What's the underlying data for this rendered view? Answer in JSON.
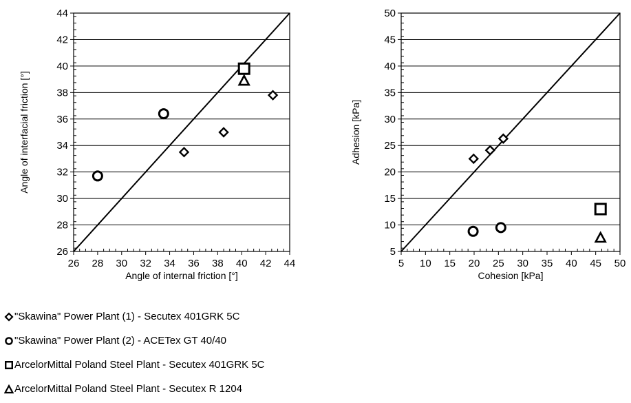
{
  "chart_data": [
    {
      "type": "scatter",
      "xlabel": "Angle of internal friction [°]",
      "ylabel": "Angle of interfacial friction [°]",
      "xlim": [
        26,
        44
      ],
      "ylim": [
        26,
        44
      ],
      "xticks": [
        "26",
        "28",
        "30",
        "32",
        "34",
        "36",
        "38",
        "40",
        "42",
        "44"
      ],
      "yticks": [
        "26",
        "28",
        "30",
        "32",
        "34",
        "36",
        "38",
        "40",
        "42",
        "44"
      ],
      "grid": "horizontal",
      "reference_line": "y = x",
      "series": [
        {
          "name": "\"Skawina\" Power Plant (1) - Secutex 401GRK 5C",
          "marker": "diamond",
          "points": [
            [
              35.2,
              33.5
            ],
            [
              38.5,
              35.0
            ],
            [
              42.6,
              37.8
            ]
          ]
        },
        {
          "name": "\"Skawina\" Power Plant (2) - ACETex GT 40/40",
          "marker": "circle",
          "points": [
            [
              28.0,
              31.7
            ],
            [
              33.5,
              36.4
            ]
          ]
        },
        {
          "name": "ArcelorMittal Poland Steel Plant - Secutex 401GRK 5C",
          "marker": "square",
          "points": [
            [
              40.2,
              39.8
            ]
          ]
        },
        {
          "name": "ArcelorMittal Poland Steel Plant - Secutex R 1204",
          "marker": "triangle",
          "points": [
            [
              40.2,
              38.9
            ]
          ]
        }
      ]
    },
    {
      "type": "scatter",
      "xlabel": "Cohesion [kPa]",
      "ylabel": "Adhesion [kPa]",
      "xlim": [
        5,
        50
      ],
      "ylim": [
        5,
        50
      ],
      "xticks": [
        "5",
        "10",
        "15",
        "20",
        "25",
        "30",
        "35",
        "40",
        "45",
        "50"
      ],
      "yticks": [
        "5",
        "10",
        "15",
        "20",
        "25",
        "30",
        "35",
        "40",
        "45",
        "50"
      ],
      "grid": "horizontal",
      "reference_line": "y = x",
      "series": [
        {
          "name": "\"Skawina\" Power Plant (1) - Secutex 401GRK 5C",
          "marker": "diamond",
          "points": [
            [
              19.9,
              22.5
            ],
            [
              23.3,
              24.1
            ],
            [
              26.0,
              26.3
            ]
          ]
        },
        {
          "name": "\"Skawina\" Power Plant (2) - ACETex GT 40/40",
          "marker": "circle",
          "points": [
            [
              19.8,
              8.8
            ],
            [
              25.5,
              9.5
            ]
          ]
        },
        {
          "name": "ArcelorMittal Poland Steel Plant - Secutex 401GRK 5C",
          "marker": "square",
          "points": [
            [
              46.0,
              13.0
            ]
          ]
        },
        {
          "name": "ArcelorMittal Poland Steel Plant - Secutex R 1204",
          "marker": "triangle",
          "points": [
            [
              46.0,
              7.6
            ]
          ]
        }
      ]
    }
  ],
  "legend": [
    {
      "marker": "diamond",
      "label": "\"Skawina\" Power Plant (1) - Secutex 401GRK 5C"
    },
    {
      "marker": "circle",
      "label": "\"Skawina\" Power Plant (2) - ACETex GT 40/40"
    },
    {
      "marker": "square",
      "label": "ArcelorMittal Poland Steel Plant - Secutex 401GRK 5C"
    },
    {
      "marker": "triangle",
      "label": "ArcelorMittal Poland Steel Plant - Secutex R 1204"
    }
  ]
}
